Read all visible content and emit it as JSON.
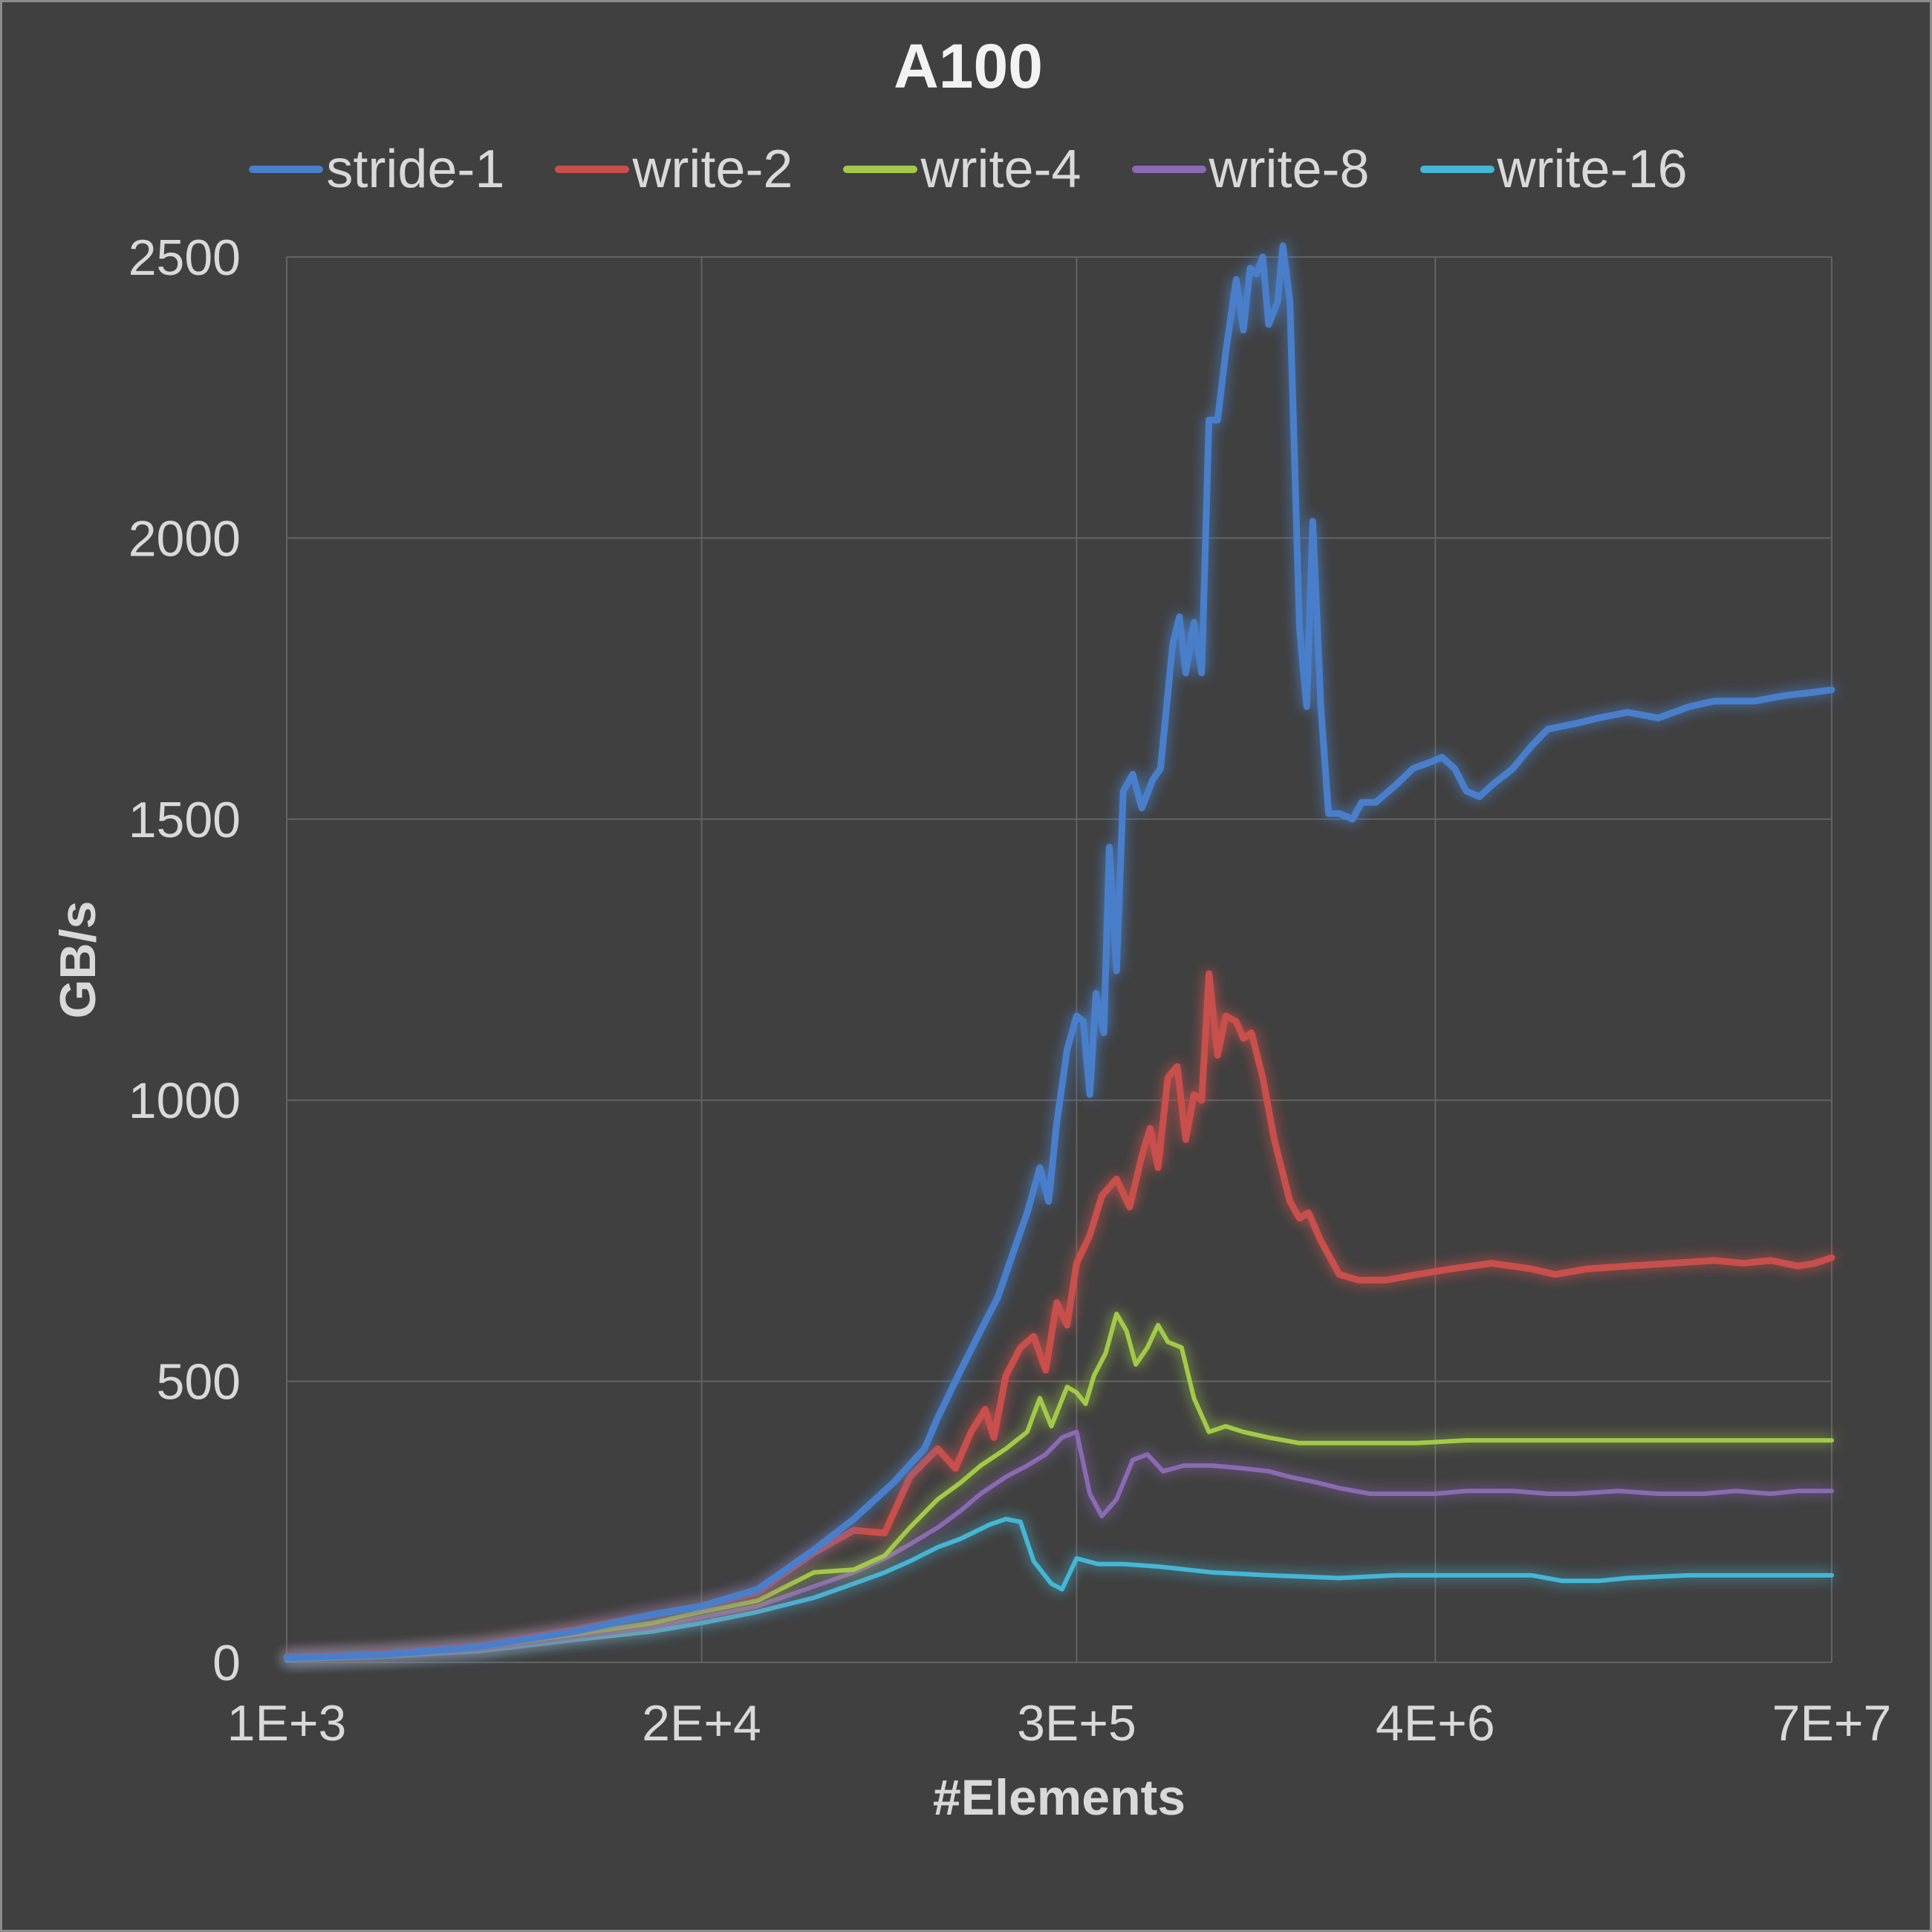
{
  "chart_data": {
    "type": "line",
    "title": "A100",
    "xlabel": "#Elements",
    "ylabel": "GB/s",
    "x_scale": "log",
    "xlim": [
      1000,
      70000000
    ],
    "ylim": [
      0,
      2500
    ],
    "x_ticks": [
      {
        "value": 1000,
        "label": "1E+3"
      },
      {
        "value": 20000,
        "label": "2E+4"
      },
      {
        "value": 300000,
        "label": "3E+5"
      },
      {
        "value": 4000000,
        "label": "4E+6"
      },
      {
        "value": 70000000,
        "label": "7E+7"
      }
    ],
    "y_ticks": [
      0,
      500,
      1000,
      1500,
      2000,
      2500
    ],
    "grid": true,
    "legend": "top",
    "series": [
      {
        "name": "stride-1",
        "color": "#4a7fca",
        "points": [
          [
            1000,
            8
          ],
          [
            2000,
            14
          ],
          [
            4000,
            28
          ],
          [
            8000,
            55
          ],
          [
            14000,
            85
          ],
          [
            20000,
            100
          ],
          [
            30000,
            130
          ],
          [
            45000,
            200
          ],
          [
            60000,
            255
          ],
          [
            80000,
            320
          ],
          [
            100000,
            380
          ],
          [
            110000,
            435
          ],
          [
            130000,
            520
          ],
          [
            150000,
            590
          ],
          [
            170000,
            650
          ],
          [
            190000,
            730
          ],
          [
            210000,
            800
          ],
          [
            230000,
            880
          ],
          [
            245000,
            820
          ],
          [
            260000,
            960
          ],
          [
            280000,
            1090
          ],
          [
            300000,
            1150
          ],
          [
            315000,
            1140
          ],
          [
            330000,
            1010
          ],
          [
            345000,
            1190
          ],
          [
            365000,
            1120
          ],
          [
            380000,
            1450
          ],
          [
            400000,
            1230
          ],
          [
            420000,
            1550
          ],
          [
            450000,
            1580
          ],
          [
            480000,
            1520
          ],
          [
            520000,
            1570
          ],
          [
            550000,
            1590
          ],
          [
            600000,
            1810
          ],
          [
            630000,
            1860
          ],
          [
            660000,
            1760
          ],
          [
            700000,
            1850
          ],
          [
            740000,
            1760
          ],
          [
            780000,
            2210
          ],
          [
            830000,
            2210
          ],
          [
            880000,
            2330
          ],
          [
            950000,
            2460
          ],
          [
            1000000,
            2370
          ],
          [
            1050000,
            2480
          ],
          [
            1100000,
            2470
          ],
          [
            1150000,
            2500
          ],
          [
            1200000,
            2380
          ],
          [
            1280000,
            2420
          ],
          [
            1330000,
            2520
          ],
          [
            1400000,
            2420
          ],
          [
            1500000,
            1840
          ],
          [
            1580000,
            1700
          ],
          [
            1650000,
            2030
          ],
          [
            1750000,
            1700
          ],
          [
            1850000,
            1510
          ],
          [
            2000000,
            1510
          ],
          [
            2200000,
            1500
          ],
          [
            2350000,
            1530
          ],
          [
            2600000,
            1530
          ],
          [
            3000000,
            1560
          ],
          [
            3400000,
            1590
          ],
          [
            3800000,
            1600
          ],
          [
            4200000,
            1610
          ],
          [
            4600000,
            1590
          ],
          [
            5000000,
            1550
          ],
          [
            5500000,
            1540
          ],
          [
            6000000,
            1560
          ],
          [
            7000000,
            1590
          ],
          [
            8000000,
            1630
          ],
          [
            9000000,
            1660
          ],
          [
            11000000,
            1670
          ],
          [
            13000000,
            1680
          ],
          [
            16000000,
            1690
          ],
          [
            20000000,
            1680
          ],
          [
            25000000,
            1700
          ],
          [
            30000000,
            1710
          ],
          [
            35000000,
            1710
          ],
          [
            40000000,
            1710
          ],
          [
            50000000,
            1720
          ],
          [
            60000000,
            1725
          ],
          [
            70000000,
            1730
          ]
        ]
      },
      {
        "name": "write-2",
        "color": "#c8504b",
        "points": [
          [
            1000,
            10
          ],
          [
            2000,
            16
          ],
          [
            4000,
            30
          ],
          [
            8000,
            58
          ],
          [
            14000,
            85
          ],
          [
            20000,
            100
          ],
          [
            30000,
            125
          ],
          [
            45000,
            195
          ],
          [
            60000,
            235
          ],
          [
            75000,
            230
          ],
          [
            90000,
            330
          ],
          [
            110000,
            380
          ],
          [
            125000,
            345
          ],
          [
            140000,
            410
          ],
          [
            155000,
            450
          ],
          [
            165000,
            400
          ],
          [
            180000,
            510
          ],
          [
            200000,
            560
          ],
          [
            220000,
            580
          ],
          [
            240000,
            520
          ],
          [
            260000,
            640
          ],
          [
            280000,
            600
          ],
          [
            300000,
            710
          ],
          [
            330000,
            760
          ],
          [
            360000,
            830
          ],
          [
            400000,
            860
          ],
          [
            440000,
            810
          ],
          [
            480000,
            900
          ],
          [
            510000,
            950
          ],
          [
            540000,
            880
          ],
          [
            580000,
            1040
          ],
          [
            620000,
            1060
          ],
          [
            660000,
            930
          ],
          [
            700000,
            1010
          ],
          [
            740000,
            1000
          ],
          [
            780000,
            1225
          ],
          [
            830000,
            1080
          ],
          [
            880000,
            1150
          ],
          [
            950000,
            1140
          ],
          [
            1000000,
            1110
          ],
          [
            1060000,
            1120
          ],
          [
            1150000,
            1040
          ],
          [
            1250000,
            930
          ],
          [
            1400000,
            820
          ],
          [
            1500000,
            790
          ],
          [
            1600000,
            800
          ],
          [
            1750000,
            750
          ],
          [
            2000000,
            690
          ],
          [
            2300000,
            680
          ],
          [
            2800000,
            680
          ],
          [
            3500000,
            690
          ],
          [
            4500000,
            700
          ],
          [
            6000000,
            710
          ],
          [
            8000000,
            700
          ],
          [
            9500000,
            690
          ],
          [
            12000000,
            700
          ],
          [
            16000000,
            705
          ],
          [
            22000000,
            710
          ],
          [
            30000000,
            715
          ],
          [
            37000000,
            710
          ],
          [
            45000000,
            715
          ],
          [
            55000000,
            705
          ],
          [
            62000000,
            710
          ],
          [
            70000000,
            720
          ]
        ]
      },
      {
        "name": "write-4",
        "color": "#a3c94a",
        "points": [
          [
            1000,
            7
          ],
          [
            2000,
            14
          ],
          [
            4000,
            26
          ],
          [
            8000,
            50
          ],
          [
            14000,
            70
          ],
          [
            20000,
            90
          ],
          [
            30000,
            110
          ],
          [
            45000,
            160
          ],
          [
            60000,
            165
          ],
          [
            75000,
            190
          ],
          [
            90000,
            240
          ],
          [
            110000,
            290
          ],
          [
            130000,
            320
          ],
          [
            150000,
            350
          ],
          [
            180000,
            380
          ],
          [
            210000,
            410
          ],
          [
            230000,
            470
          ],
          [
            250000,
            420
          ],
          [
            280000,
            490
          ],
          [
            300000,
            480
          ],
          [
            320000,
            460
          ],
          [
            340000,
            510
          ],
          [
            370000,
            550
          ],
          [
            400000,
            620
          ],
          [
            430000,
            590
          ],
          [
            460000,
            530
          ],
          [
            500000,
            560
          ],
          [
            540000,
            600
          ],
          [
            580000,
            570
          ],
          [
            640000,
            560
          ],
          [
            700000,
            470
          ],
          [
            780000,
            410
          ],
          [
            880000,
            420
          ],
          [
            1000000,
            410
          ],
          [
            1200000,
            400
          ],
          [
            1500000,
            390
          ],
          [
            2000000,
            390
          ],
          [
            2800000,
            390
          ],
          [
            3500000,
            390
          ],
          [
            5000000,
            395
          ],
          [
            7000000,
            395
          ],
          [
            10000000,
            395
          ],
          [
            15000000,
            395
          ],
          [
            20000000,
            395
          ],
          [
            30000000,
            395
          ],
          [
            45000000,
            395
          ],
          [
            60000000,
            395
          ],
          [
            70000000,
            395
          ]
        ]
      },
      {
        "name": "write-8",
        "color": "#8b6ab3",
        "points": [
          [
            1000,
            6
          ],
          [
            2000,
            12
          ],
          [
            4000,
            24
          ],
          [
            8000,
            45
          ],
          [
            14000,
            62
          ],
          [
            20000,
            80
          ],
          [
            30000,
            100
          ],
          [
            45000,
            135
          ],
          [
            60000,
            160
          ],
          [
            75000,
            185
          ],
          [
            90000,
            210
          ],
          [
            110000,
            240
          ],
          [
            130000,
            270
          ],
          [
            150000,
            300
          ],
          [
            180000,
            330
          ],
          [
            210000,
            350
          ],
          [
            240000,
            370
          ],
          [
            270000,
            400
          ],
          [
            300000,
            410
          ],
          [
            330000,
            300
          ],
          [
            360000,
            260
          ],
          [
            400000,
            290
          ],
          [
            450000,
            360
          ],
          [
            500000,
            370
          ],
          [
            560000,
            340
          ],
          [
            650000,
            350
          ],
          [
            800000,
            350
          ],
          [
            1000000,
            345
          ],
          [
            1200000,
            340
          ],
          [
            1400000,
            330
          ],
          [
            1700000,
            320
          ],
          [
            2000000,
            310
          ],
          [
            2500000,
            300
          ],
          [
            3000000,
            300
          ],
          [
            4000000,
            300
          ],
          [
            5000000,
            305
          ],
          [
            7000000,
            305
          ],
          [
            9000000,
            300
          ],
          [
            11000000,
            300
          ],
          [
            15000000,
            305
          ],
          [
            20000000,
            300
          ],
          [
            28000000,
            300
          ],
          [
            35000000,
            305
          ],
          [
            45000000,
            300
          ],
          [
            55000000,
            305
          ],
          [
            70000000,
            305
          ]
        ]
      },
      {
        "name": "write-16",
        "color": "#45b6d6",
        "points": [
          [
            1000,
            4
          ],
          [
            2000,
            10
          ],
          [
            4000,
            20
          ],
          [
            8000,
            40
          ],
          [
            14000,
            55
          ],
          [
            20000,
            70
          ],
          [
            30000,
            90
          ],
          [
            45000,
            115
          ],
          [
            60000,
            140
          ],
          [
            75000,
            160
          ],
          [
            90000,
            180
          ],
          [
            110000,
            205
          ],
          [
            130000,
            220
          ],
          [
            160000,
            245
          ],
          [
            180000,
            255
          ],
          [
            200000,
            250
          ],
          [
            220000,
            180
          ],
          [
            250000,
            140
          ],
          [
            270000,
            130
          ],
          [
            300000,
            185
          ],
          [
            350000,
            175
          ],
          [
            420000,
            175
          ],
          [
            550000,
            170
          ],
          [
            800000,
            160
          ],
          [
            1200000,
            155
          ],
          [
            2000000,
            150
          ],
          [
            3000000,
            155
          ],
          [
            5000000,
            155
          ],
          [
            8000000,
            155
          ],
          [
            10000000,
            145
          ],
          [
            13000000,
            145
          ],
          [
            16000000,
            150
          ],
          [
            25000000,
            155
          ],
          [
            40000000,
            155
          ],
          [
            55000000,
            155
          ],
          [
            70000000,
            155
          ]
        ]
      }
    ]
  }
}
